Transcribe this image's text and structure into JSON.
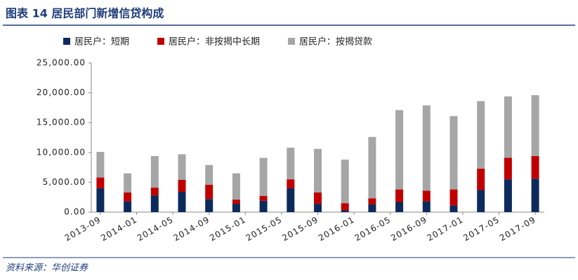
{
  "chart_data": {
    "type": "stacked-bar",
    "title": "图表 14 居民部门新增信贷构成",
    "source": "资料来源：华创证券",
    "x": [
      "2013-09",
      "2013-12",
      "2014-03",
      "2014-06",
      "2014-09",
      "2014-12",
      "2015-03",
      "2015-06",
      "2015-09",
      "2015-12",
      "2016-03",
      "2016-06",
      "2016-09",
      "2016-12",
      "2017-03",
      "2017-06",
      "2017-09"
    ],
    "series": [
      {
        "name": "居民户：短期",
        "color": "#0d2a5c",
        "values": [
          4000,
          1800,
          2800,
          3400,
          2200,
          1400,
          1900,
          4000,
          1400,
          300,
          1300,
          1700,
          1800,
          1100,
          3700,
          5500,
          5600
        ]
      },
      {
        "name": "居民户：非按揭中长期",
        "color": "#c00000",
        "values": [
          1800,
          1500,
          1300,
          2000,
          2400,
          700,
          800,
          1500,
          1900,
          1200,
          1000,
          2100,
          1800,
          2700,
          3600,
          3600,
          3800
        ]
      },
      {
        "name": "居民户：按揭贷款",
        "color": "#a6a6a6",
        "values": [
          4300,
          3200,
          5300,
          4300,
          3300,
          4400,
          6400,
          5300,
          7300,
          7300,
          10300,
          13300,
          14300,
          12300,
          11300,
          10300,
          10200
        ]
      }
    ],
    "xlim": [
      "2013-08",
      "2017-10"
    ],
    "xticks": [
      "2013-09",
      "2014-01",
      "2014-05",
      "2014-09",
      "2015-01",
      "2015-05",
      "2015-09",
      "2016-01",
      "2016-05",
      "2016-09",
      "2017-01",
      "2017-05",
      "2017-09"
    ],
    "ylim": [
      0,
      25000
    ],
    "yticks": [
      {
        "value": 0,
        "label": "0.00"
      },
      {
        "value": 5000,
        "label": "5,000.00"
      },
      {
        "value": 10000,
        "label": "10,000.00"
      },
      {
        "value": 15000,
        "label": "15,000.00"
      },
      {
        "value": 20000,
        "label": "20,000.00"
      },
      {
        "value": 25000,
        "label": "25,000.00"
      }
    ],
    "legend": "top"
  }
}
